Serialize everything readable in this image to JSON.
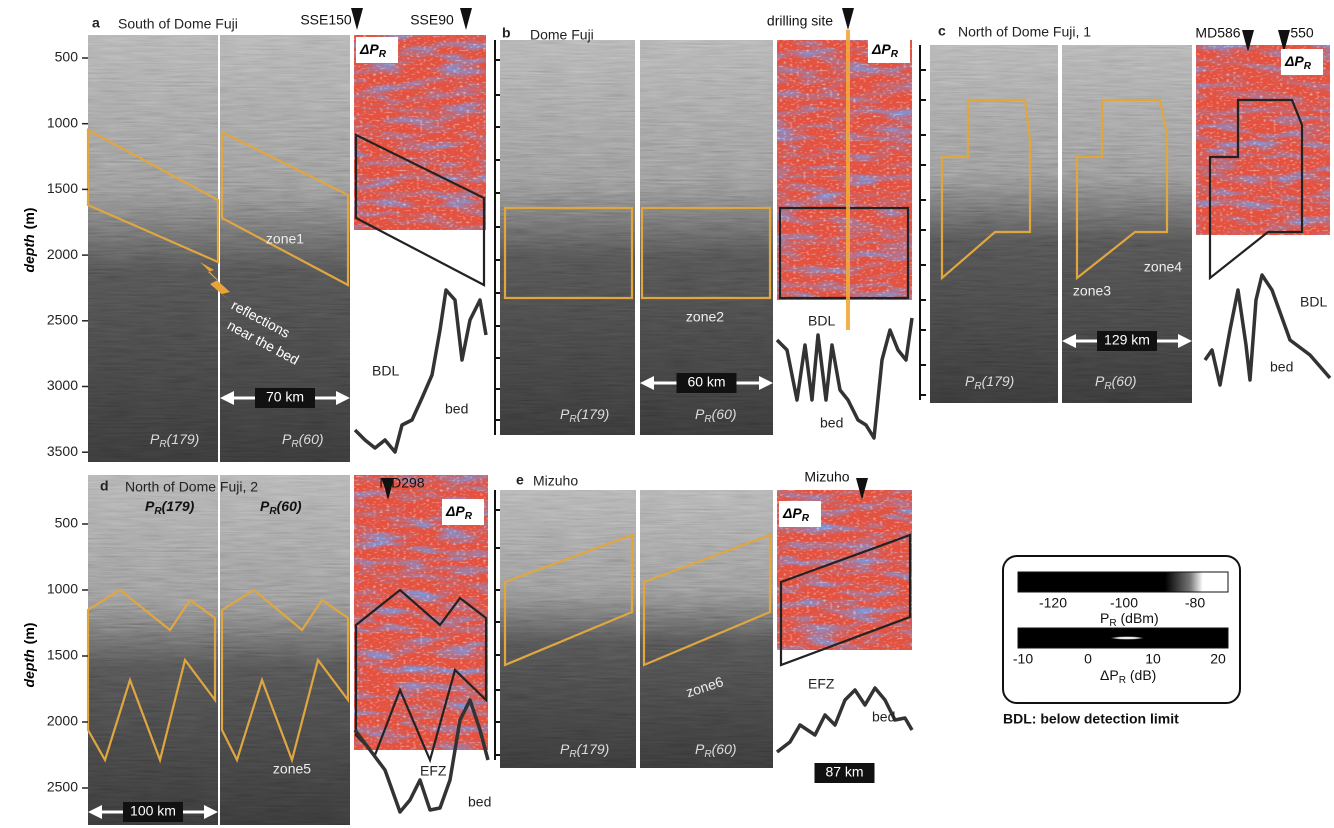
{
  "panels": [
    {
      "letter": "a",
      "title": "South of Dome Fuji",
      "markers": [
        "SSE150",
        "SSE90"
      ],
      "delta": {
        "symbol": "ΔP",
        "sub": "R"
      },
      "zones": [
        "zone1"
      ],
      "notes": [
        "reflections",
        "near the bed",
        "BDL",
        "bed"
      ],
      "scale": "70 km",
      "radar": [
        {
          "symbol": "P",
          "sub": "R",
          "suffix": "(179)"
        },
        {
          "symbol": "P",
          "sub": "R",
          "suffix": "(60)"
        }
      ]
    },
    {
      "letter": "b",
      "title": "Dome Fuji",
      "markers": [
        "drilling site"
      ],
      "delta": {
        "symbol": "ΔP",
        "sub": "R"
      },
      "zones": [
        "zone2"
      ],
      "notes": [
        "BDL",
        "bed"
      ],
      "scale": "60 km",
      "radar": [
        {
          "symbol": "P",
          "sub": "R",
          "suffix": "(179)"
        },
        {
          "symbol": "P",
          "sub": "R",
          "suffix": "(60)"
        }
      ]
    },
    {
      "letter": "c",
      "title": "North of Dome Fuji, 1",
      "markers": [
        "MD586",
        "550"
      ],
      "delta": {
        "symbol": "ΔP",
        "sub": "R"
      },
      "zones": [
        "zone3",
        "zone4"
      ],
      "notes": [
        "BDL",
        "bed"
      ],
      "scale": "129 km",
      "radar": [
        {
          "symbol": "P",
          "sub": "R",
          "suffix": "(179)"
        },
        {
          "symbol": "P",
          "sub": "R",
          "suffix": "(60)"
        }
      ]
    },
    {
      "letter": "d",
      "title": "North of Dome Fuji, 2",
      "markers": [
        "MD298"
      ],
      "delta": {
        "symbol": "ΔP",
        "sub": "R"
      },
      "zones": [
        "zone5"
      ],
      "notes": [
        "EFZ",
        "bed"
      ],
      "scale": "100 km",
      "radar": [
        {
          "symbol": "P",
          "sub": "R",
          "suffix": "(179)"
        },
        {
          "symbol": "P",
          "sub": "R",
          "suffix": "(60)"
        }
      ]
    },
    {
      "letter": "e",
      "title": "Mizuho",
      "markers": [
        "Mizuho"
      ],
      "delta": {
        "symbol": "ΔP",
        "sub": "R"
      },
      "zones": [
        "zone6"
      ],
      "notes": [
        "EFZ",
        "bed"
      ],
      "scale": "87 km",
      "radar": [
        {
          "symbol": "P",
          "sub": "R",
          "suffix": "(179)"
        },
        {
          "symbol": "P",
          "sub": "R",
          "suffix": "(60)"
        }
      ]
    }
  ],
  "depth_axes": [
    {
      "title": "depth",
      "unit": "(m)",
      "ticks": [
        500,
        1000,
        1500,
        2000,
        2500,
        3000,
        3500
      ]
    },
    {
      "title": "depth",
      "unit": "(m)",
      "ticks": [
        500,
        1000,
        1500,
        2000,
        2500
      ]
    }
  ],
  "legend": {
    "bars": [
      {
        "ticks": [
          -120,
          -100,
          -80
        ],
        "label": {
          "symbol": "P",
          "sub": "R",
          "suffix": " (dBm)"
        }
      },
      {
        "ticks": [
          -10,
          0,
          10,
          20
        ],
        "label": {
          "symbol": "ΔP",
          "sub": "R",
          "suffix": " (dB)"
        }
      }
    ],
    "note": "BDL: below detection limit"
  }
}
